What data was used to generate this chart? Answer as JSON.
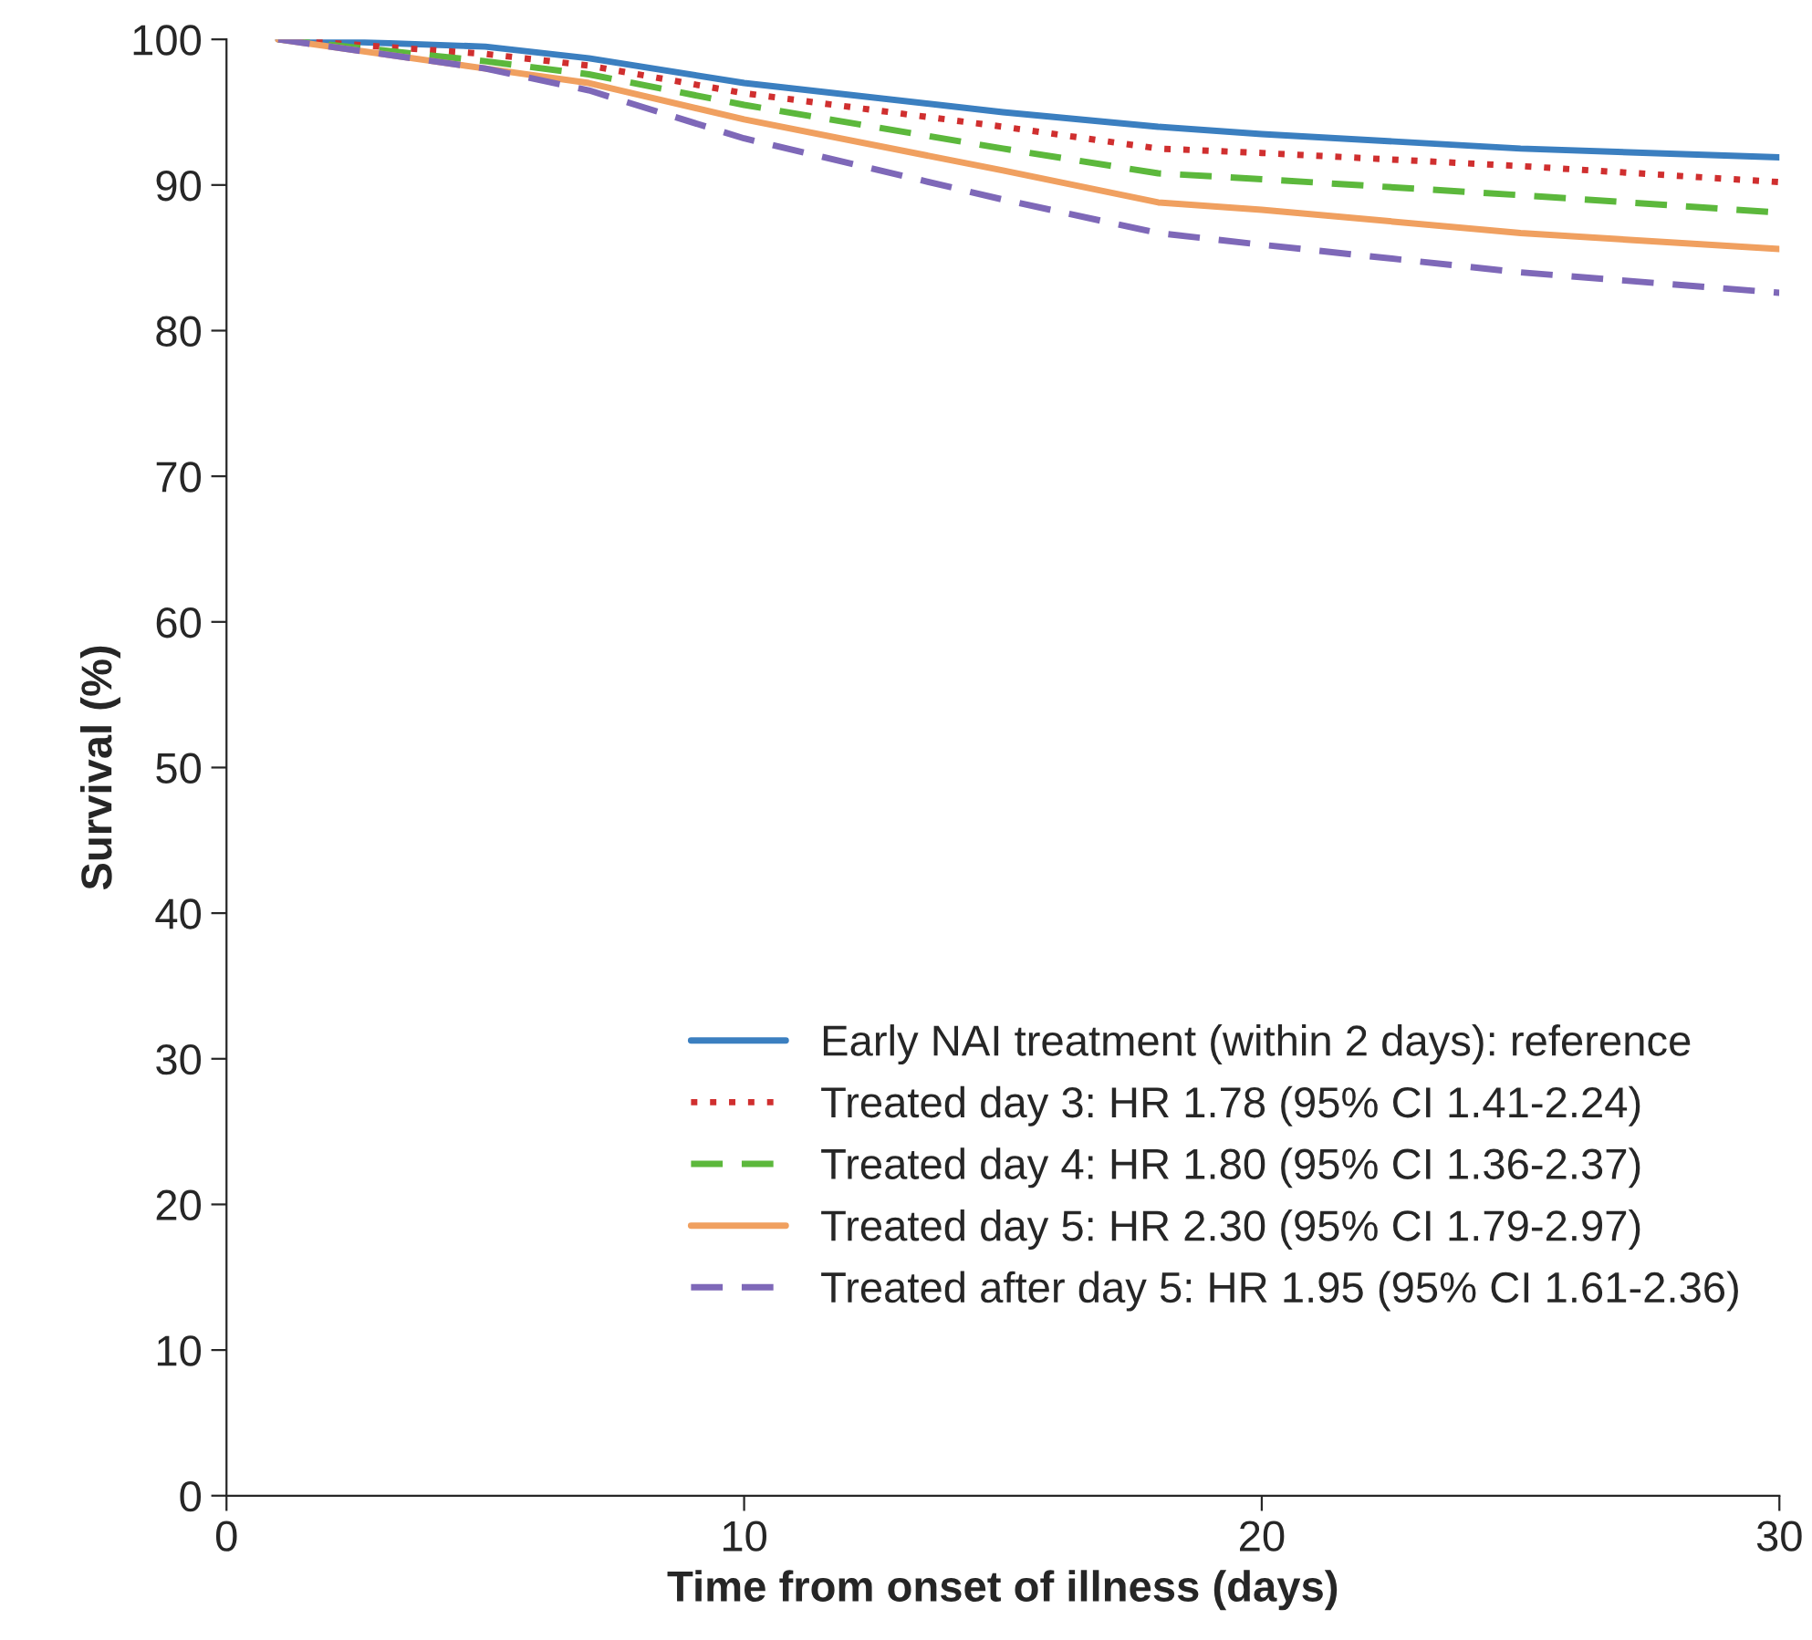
{
  "chart_data": {
    "type": "line",
    "xlabel": "Time from onset of illness (days)",
    "ylabel": "Survival (%)",
    "x": [
      1,
      5,
      7,
      10,
      15,
      18,
      20,
      25,
      30
    ],
    "series": [
      {
        "name": "Early NAI treatment (within 2 days): reference",
        "color": "#3b7fc0",
        "line_style": "solid",
        "values": [
          100,
          99.5,
          98.7,
          97,
          95,
          94,
          93.5,
          92.5,
          91.9
        ]
      },
      {
        "name": "Treated day 3: HR 1.78 (95% CI 1.41-2.24)",
        "color": "#d02f2f",
        "line_style": "dotted",
        "values": [
          100,
          99,
          98.2,
          96.3,
          94,
          92.5,
          92.2,
          91.3,
          90.2
        ]
      },
      {
        "name": "Treated day 4: HR 1.80 (95% CI 1.36-2.37)",
        "color": "#5cb83c",
        "line_style": "dashed",
        "values": [
          100,
          98.5,
          97.6,
          95.5,
          92.5,
          90.8,
          90.4,
          89.3,
          88.1
        ]
      },
      {
        "name": "Treated day 5: HR 2.30 (95% CI 1.79-2.97)",
        "color": "#f0a060",
        "line_style": "solid",
        "values": [
          100,
          98,
          97,
          94.5,
          91,
          88.8,
          88.3,
          86.7,
          85.6
        ]
      },
      {
        "name": "Treated after day 5: HR 1.95 (95% CI 1.61-2.36)",
        "color": "#7e68b8",
        "line_style": "dashed",
        "values": [
          100,
          98,
          96.5,
          93.2,
          89,
          86.7,
          85.9,
          84,
          82.6
        ]
      }
    ],
    "xlim": [
      0,
      30
    ],
    "xticks": [
      0,
      10,
      20,
      30
    ],
    "ylim": [
      0,
      100
    ],
    "yticks": [
      0,
      10,
      20,
      30,
      40,
      50,
      60,
      70,
      80,
      90,
      100
    ],
    "grid": false,
    "legend": "bottom right",
    "marker": "none"
  }
}
